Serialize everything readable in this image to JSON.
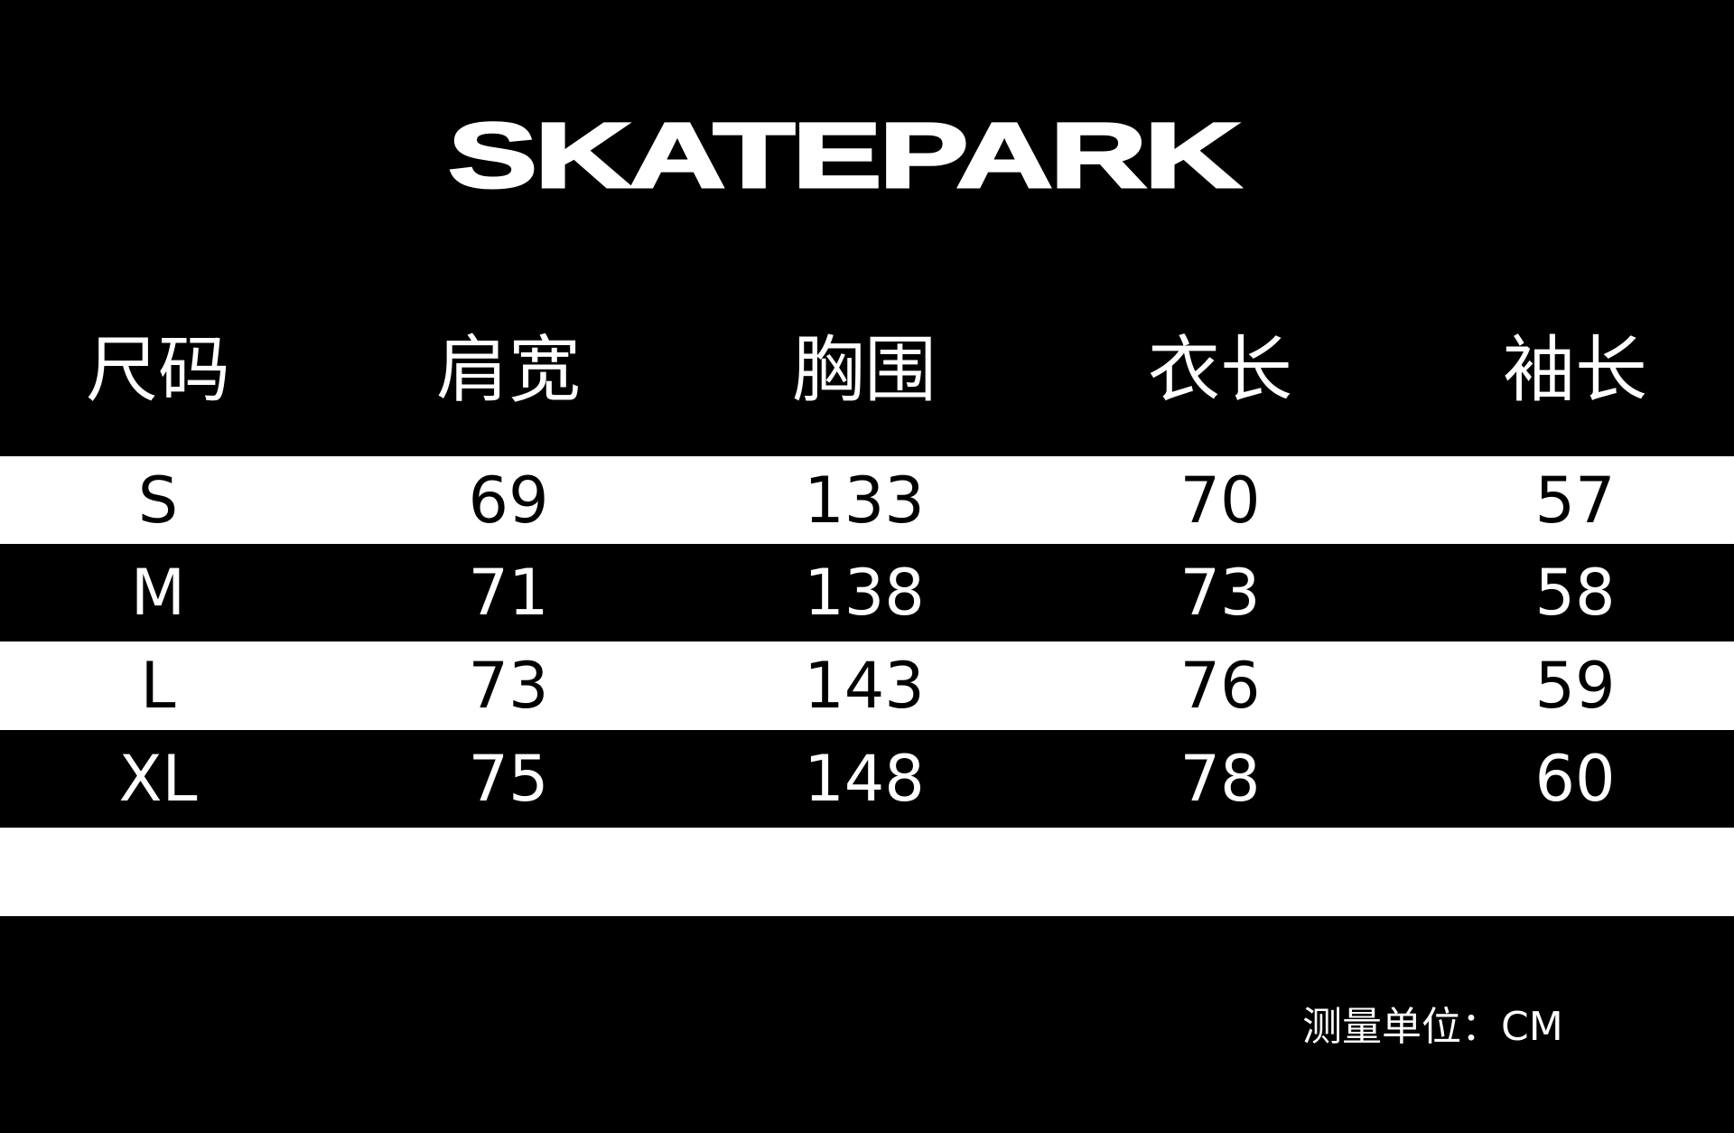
{
  "brand": "SKATEPARK",
  "table": {
    "headers": [
      "尺码",
      "肩宽",
      "胸围",
      "衣长",
      "袖长"
    ],
    "rows": [
      [
        "S",
        "69",
        "133",
        "70",
        "57"
      ],
      [
        "M",
        "71",
        "138",
        "73",
        "58"
      ],
      [
        "L",
        "73",
        "143",
        "76",
        "59"
      ],
      [
        "XL",
        "75",
        "148",
        "78",
        "60"
      ]
    ]
  },
  "unit_note": "测量单位：CM",
  "colors": {
    "background": "#000000",
    "stripe": "#ffffff"
  }
}
